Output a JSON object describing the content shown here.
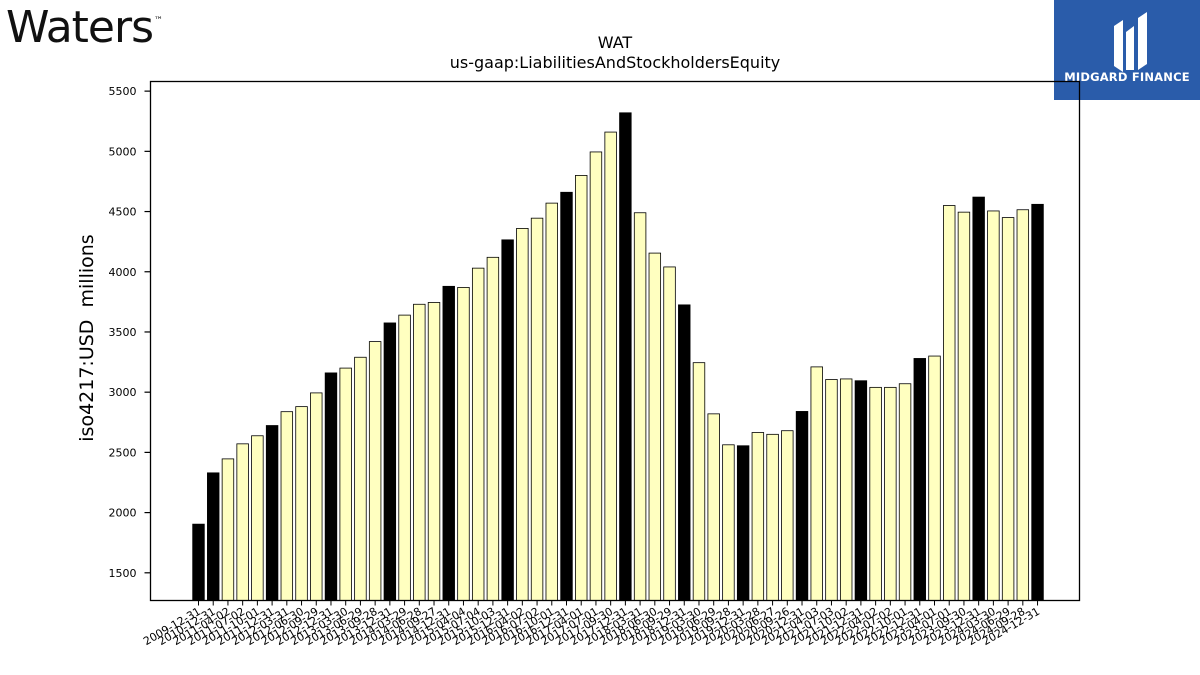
{
  "brand": {
    "left_logo_text": "Waters",
    "left_logo_mark": "™",
    "right_logo_text": "MIDGARD FINANCE",
    "right_logo_color": "#2a5caa"
  },
  "chart_data": {
    "type": "bar",
    "title": "WAT",
    "subtitle": "us-gaap:LiabilitiesAndStockholdersEquity",
    "ylabel": "iso4217:USD  millions",
    "xlabel": "",
    "ylim": [
      1270,
      5580
    ],
    "yticks": [
      1500,
      2000,
      2500,
      3000,
      3500,
      4000,
      4500,
      5000,
      5500
    ],
    "grid": false,
    "colors": {
      "annual": "#000000",
      "quarterly": "#ffffc0",
      "edge": "#000000"
    },
    "categories": [
      "2009-12-31",
      "2010-12-31",
      "2011-04-02",
      "2011-07-02",
      "2011-10-01",
      "2011-12-31",
      "2012-03-31",
      "2012-06-30",
      "2012-09-29",
      "2012-12-31",
      "2013-03-30",
      "2013-06-29",
      "2013-09-28",
      "2013-12-31",
      "2014-03-29",
      "2014-06-28",
      "2014-09-27",
      "2014-12-31",
      "2015-04-04",
      "2015-07-04",
      "2015-10-03",
      "2015-12-31",
      "2016-04-02",
      "2016-07-02",
      "2016-10-01",
      "2016-12-31",
      "2017-04-01",
      "2017-07-01",
      "2017-09-30",
      "2017-12-31",
      "2018-03-31",
      "2018-06-30",
      "2018-09-29",
      "2018-12-31",
      "2019-03-30",
      "2019-06-29",
      "2019-09-28",
      "2019-12-31",
      "2020-03-28",
      "2020-06-27",
      "2020-09-26",
      "2020-12-31",
      "2021-04-03",
      "2021-07-03",
      "2021-10-02",
      "2021-12-31",
      "2022-04-02",
      "2022-07-02",
      "2022-10-01",
      "2022-12-31",
      "2023-04-01",
      "2023-07-01",
      "2023-09-30",
      "2023-12-31",
      "2024-03-30",
      "2024-06-29",
      "2024-09-28",
      "2024-12-31"
    ],
    "values": [
      1904,
      2330,
      2446,
      2571,
      2638,
      2723,
      2838,
      2880,
      2994,
      3160,
      3200,
      3290,
      3420,
      3575,
      3640,
      3730,
      3745,
      3879,
      3870,
      4030,
      4120,
      4265,
      4360,
      4445,
      4570,
      4660,
      4800,
      4995,
      5160,
      5320,
      4490,
      4155,
      4040,
      3725,
      3245,
      2820,
      2563,
      2555,
      2665,
      2650,
      2680,
      2840,
      3210,
      3105,
      3110,
      3095,
      3040,
      3040,
      3070,
      3280,
      3300,
      4550,
      4495,
      4620,
      4505,
      4450,
      4515,
      4560
    ],
    "annual_flags": [
      true,
      true,
      false,
      false,
      false,
      true,
      false,
      false,
      false,
      true,
      false,
      false,
      false,
      true,
      false,
      false,
      false,
      true,
      false,
      false,
      false,
      true,
      false,
      false,
      false,
      true,
      false,
      false,
      false,
      true,
      false,
      false,
      false,
      true,
      false,
      false,
      false,
      true,
      false,
      false,
      false,
      true,
      false,
      false,
      false,
      true,
      false,
      false,
      false,
      true,
      false,
      false,
      false,
      true,
      false,
      false,
      false,
      true
    ]
  }
}
